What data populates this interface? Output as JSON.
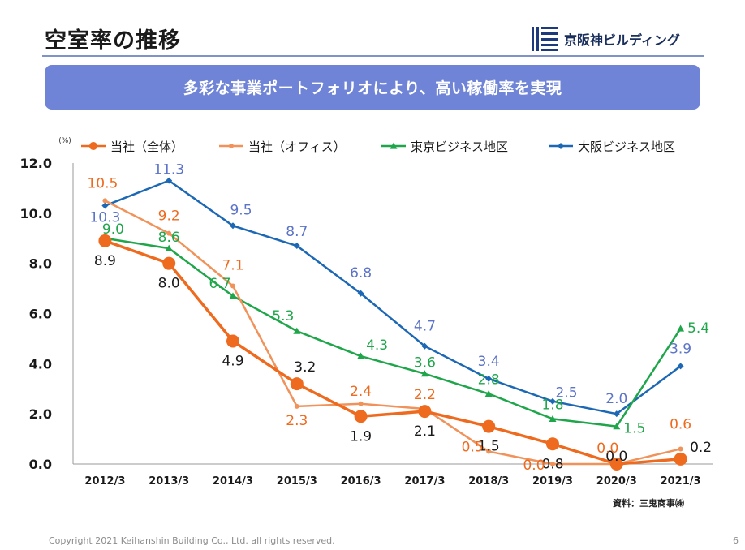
{
  "page": {
    "title": "空室率の推移",
    "brand": "京阪神ビルディング",
    "banner": "多彩な事業ポートフォリオにより、高い稼働率を実現",
    "source": "資料：三鬼商事㈱",
    "copyright": "Copyright 2021 Keihanshin Building Co., Ltd. all rights reserved.",
    "page_number": "6"
  },
  "chart_data": {
    "type": "line",
    "unit_label": "(%)",
    "title": "",
    "xlabel": "",
    "ylabel": "",
    "ylim": [
      0,
      12
    ],
    "yticks": [
      "0.0",
      "2.0",
      "4.0",
      "6.0",
      "8.0",
      "10.0",
      "12.0"
    ],
    "grid": false,
    "legend_position": "top",
    "categories": [
      "2012/3",
      "2013/3",
      "2014/3",
      "2015/3",
      "2016/3",
      "2017/3",
      "2018/3",
      "2019/3",
      "2020/3",
      "2021/3"
    ],
    "series": [
      {
        "name": "当社（全体）",
        "color": "#ee6a1e",
        "marker": "circle-large",
        "values": [
          8.9,
          8.0,
          4.9,
          3.2,
          1.9,
          2.1,
          1.5,
          0.8,
          0.0,
          0.2
        ],
        "labels": [
          "8.9",
          "8.0",
          "4.9",
          "3.2",
          "1.9",
          "2.1",
          "1.5",
          "0.8",
          "0.0",
          "0.2"
        ]
      },
      {
        "name": "当社（オフィス）",
        "color": "#f0925a",
        "marker": "circle-small",
        "values": [
          10.5,
          9.2,
          7.1,
          2.3,
          2.4,
          2.2,
          0.5,
          0.0,
          0.0,
          0.6
        ],
        "labels": [
          "10.5",
          "9.2",
          "7.1",
          "2.3",
          "2.4",
          "2.2",
          "0.5",
          "0.0",
          "0.0",
          "0.6"
        ]
      },
      {
        "name": "東京ビジネス地区",
        "color": "#1fa64a",
        "marker": "triangle",
        "values": [
          9.0,
          8.6,
          6.7,
          5.3,
          4.3,
          3.6,
          2.8,
          1.8,
          1.5,
          5.4
        ],
        "labels": [
          "9.0",
          "8.6",
          "6.7",
          "5.3",
          "4.3",
          "3.6",
          "2.8",
          "1.8",
          "1.5",
          "5.4"
        ]
      },
      {
        "name": "大阪ビジネス地区",
        "color": "#1c68b4",
        "marker": "diamond",
        "values": [
          10.3,
          11.3,
          9.5,
          8.7,
          6.8,
          4.7,
          3.4,
          2.5,
          2.0,
          3.9
        ],
        "labels": [
          "10.3",
          "11.3",
          "9.5",
          "8.7",
          "6.8",
          "4.7",
          "3.4",
          "2.5",
          "2.0",
          "3.9"
        ]
      }
    ]
  }
}
